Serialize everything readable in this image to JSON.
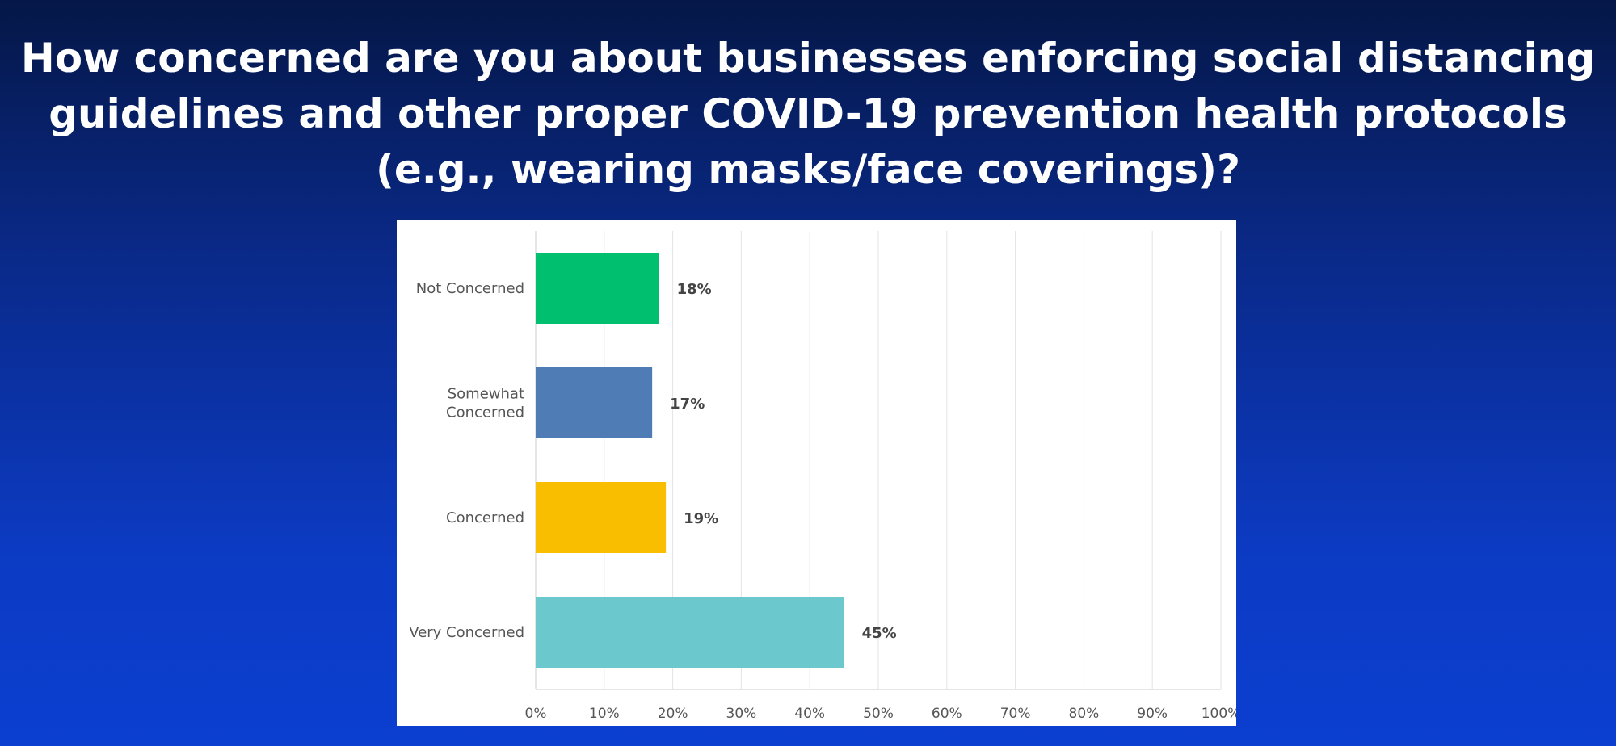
{
  "slide": {
    "title_lines": [
      "How concerned are you about businesses enforcing social distancing",
      "guidelines and other proper COVID-19 prevention health protocols",
      "(e.g., wearing masks/face coverings)?"
    ]
  },
  "chart_data": {
    "type": "bar",
    "orientation": "horizontal",
    "categories": [
      "Not Concerned",
      "Somewhat Concerned",
      "Concerned",
      "Very Concerned"
    ],
    "category_lines": [
      [
        "Not Concerned"
      ],
      [
        "Somewhat",
        "Concerned"
      ],
      [
        "Concerned"
      ],
      [
        "Very Concerned"
      ]
    ],
    "values": [
      18,
      17,
      19,
      45
    ],
    "value_labels": [
      "18%",
      "17%",
      "19%",
      "45%"
    ],
    "colors": [
      "#00bf6f",
      "#507cb6",
      "#f9be00",
      "#6bc8cd"
    ],
    "xlim": [
      0,
      100
    ],
    "x_ticks": [
      "0%",
      "10%",
      "20%",
      "30%",
      "40%",
      "50%",
      "60%",
      "70%",
      "80%",
      "90%",
      "100%"
    ],
    "grid": true,
    "legend": "none"
  }
}
